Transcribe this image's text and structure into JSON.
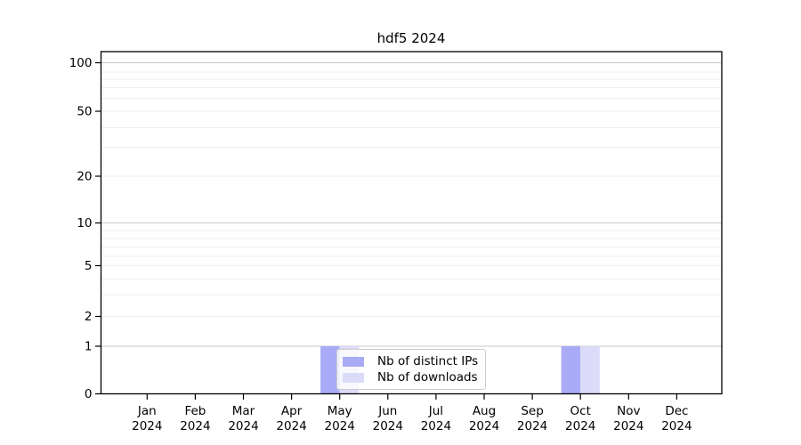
{
  "chart_data": {
    "type": "bar",
    "title": "hdf5 2024",
    "year_label": "2024",
    "categories": [
      "Jan",
      "Feb",
      "Mar",
      "Apr",
      "May",
      "Jun",
      "Jul",
      "Aug",
      "Sep",
      "Oct",
      "Nov",
      "Dec"
    ],
    "series": [
      {
        "name": "Nb of distinct IPs",
        "color": "#aaabf6",
        "values": [
          0,
          0,
          0,
          0,
          1,
          0,
          0,
          0,
          0,
          1,
          0,
          0
        ]
      },
      {
        "name": "Nb of downloads",
        "color": "#dbdbf9",
        "values": [
          0,
          0,
          0,
          0,
          1,
          0,
          0,
          0,
          0,
          1,
          0,
          0
        ]
      }
    ],
    "yscale": "symlog",
    "ylim": [
      0,
      115
    ],
    "y_ticks": [
      0,
      1,
      2,
      5,
      10,
      20,
      50,
      100
    ],
    "grid": "both",
    "legend_position": "lower center"
  },
  "colors": {
    "spine": "#000000",
    "major_grid": "#c9c9c9",
    "minor_grid": "#efefef",
    "text": "#000000"
  }
}
